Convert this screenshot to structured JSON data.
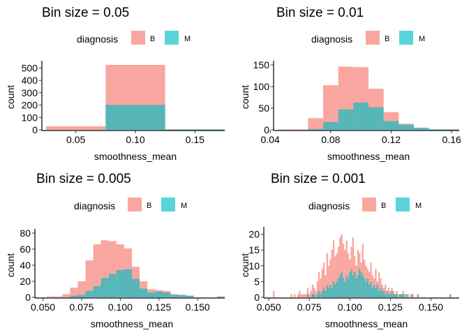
{
  "colors": {
    "B": "#F8766D",
    "M": "#00BFC4",
    "axis": "#000000",
    "text": "#000000"
  },
  "chart_data": [
    {
      "type": "bar",
      "title": "Bin size = 0.05",
      "xlabel": "smoothness_mean",
      "ylabel": "count",
      "legend_title": "diagnosis",
      "legend_position": "top",
      "series_names": [
        "B",
        "M"
      ],
      "bin_width": 0.05,
      "xlim": [
        0.025,
        0.175
      ],
      "ylim": [
        0,
        525
      ],
      "xticks": [
        "0.05",
        "0.10",
        "0.15"
      ],
      "xtick_values": [
        0.05,
        0.1,
        0.15
      ],
      "yticks": [
        "0",
        "100",
        "200",
        "300",
        "400",
        "500"
      ],
      "ytick_values": [
        0,
        100,
        200,
        300,
        400,
        500
      ],
      "bins": [
        {
          "x0": 0.025,
          "x1": 0.075,
          "B": 29,
          "M": 0
        },
        {
          "x0": 0.075,
          "x1": 0.125,
          "B": 525,
          "M": 202
        },
        {
          "x0": 0.125,
          "x1": 0.175,
          "B": 3,
          "M": 3
        }
      ]
    },
    {
      "type": "bar",
      "title": "Bin size = 0.01",
      "xlabel": "smoothness_mean",
      "ylabel": "count",
      "legend_title": "diagnosis",
      "legend_position": "top",
      "series_names": [
        "B",
        "M"
      ],
      "bin_width": 0.01,
      "xlim": [
        0.045,
        0.165
      ],
      "ylim": [
        0,
        150
      ],
      "xticks": [
        "0.04",
        "0.08",
        "0.12",
        "0.16"
      ],
      "xtick_values": [
        0.04,
        0.08,
        0.12,
        0.16
      ],
      "yticks": [
        "0",
        "50",
        "100",
        "150"
      ],
      "ytick_values": [
        0,
        50,
        100,
        150
      ],
      "bins": [
        {
          "x0": 0.045,
          "x1": 0.055,
          "B": 1,
          "M": 0
        },
        {
          "x0": 0.055,
          "x1": 0.065,
          "B": 1,
          "M": 0
        },
        {
          "x0": 0.065,
          "x1": 0.075,
          "B": 27,
          "M": 2
        },
        {
          "x0": 0.075,
          "x1": 0.085,
          "B": 103,
          "M": 18
        },
        {
          "x0": 0.085,
          "x1": 0.095,
          "B": 146,
          "M": 47
        },
        {
          "x0": 0.095,
          "x1": 0.105,
          "B": 145,
          "M": 63
        },
        {
          "x0": 0.105,
          "x1": 0.115,
          "B": 95,
          "M": 52
        },
        {
          "x0": 0.115,
          "x1": 0.125,
          "B": 41,
          "M": 20
        },
        {
          "x0": 0.125,
          "x1": 0.135,
          "B": 14,
          "M": 12
        },
        {
          "x0": 0.135,
          "x1": 0.145,
          "B": 4,
          "M": 5
        },
        {
          "x0": 0.145,
          "x1": 0.155,
          "B": 1,
          "M": 1
        },
        {
          "x0": 0.155,
          "x1": 0.165,
          "B": 1,
          "M": 1
        }
      ]
    },
    {
      "type": "bar",
      "title": "Bin size = 0.005",
      "xlabel": "smoothness_mean",
      "ylabel": "count",
      "legend_title": "diagnosis",
      "legend_position": "top",
      "series_names": [
        "B",
        "M"
      ],
      "bin_width": 0.005,
      "xlim": [
        0.0475,
        0.1675
      ],
      "ylim": [
        0,
        80
      ],
      "xticks": [
        "0.050",
        "0.075",
        "0.100",
        "0.125",
        "0.150"
      ],
      "xtick_values": [
        0.05,
        0.075,
        0.1,
        0.125,
        0.15
      ],
      "yticks": [
        "0",
        "20",
        "40",
        "60",
        "80"
      ],
      "ytick_values": [
        0,
        20,
        40,
        60,
        80
      ],
      "bins": [
        {
          "x0": 0.0525,
          "x1": 0.0575,
          "B": 1,
          "M": 0
        },
        {
          "x0": 0.0575,
          "x1": 0.0625,
          "B": 1,
          "M": 0
        },
        {
          "x0": 0.0625,
          "x1": 0.0675,
          "B": 4,
          "M": 0
        },
        {
          "x0": 0.0675,
          "x1": 0.0725,
          "B": 12,
          "M": 2
        },
        {
          "x0": 0.0725,
          "x1": 0.0775,
          "B": 20,
          "M": 3
        },
        {
          "x0": 0.0775,
          "x1": 0.0825,
          "B": 46,
          "M": 8
        },
        {
          "x0": 0.0825,
          "x1": 0.0875,
          "B": 66,
          "M": 14
        },
        {
          "x0": 0.0875,
          "x1": 0.0925,
          "B": 71,
          "M": 24
        },
        {
          "x0": 0.0925,
          "x1": 0.0975,
          "B": 70,
          "M": 29
        },
        {
          "x0": 0.0975,
          "x1": 0.1025,
          "B": 66,
          "M": 34
        },
        {
          "x0": 0.1025,
          "x1": 0.1075,
          "B": 61,
          "M": 35
        },
        {
          "x0": 0.1075,
          "x1": 0.1125,
          "B": 38,
          "M": 23
        },
        {
          "x0": 0.1125,
          "x1": 0.1175,
          "B": 20,
          "M": 11
        },
        {
          "x0": 0.1175,
          "x1": 0.1225,
          "B": 10,
          "M": 6
        },
        {
          "x0": 0.1225,
          "x1": 0.1275,
          "B": 9,
          "M": 7
        },
        {
          "x0": 0.1275,
          "x1": 0.1325,
          "B": 8,
          "M": 6
        },
        {
          "x0": 0.1325,
          "x1": 0.1375,
          "B": 4,
          "M": 3
        },
        {
          "x0": 0.1375,
          "x1": 0.1425,
          "B": 3,
          "M": 3
        },
        {
          "x0": 0.1425,
          "x1": 0.1475,
          "B": 2,
          "M": 2
        },
        {
          "x0": 0.1625,
          "x1": 0.1675,
          "B": 1,
          "M": 1
        }
      ]
    },
    {
      "type": "bar",
      "title": "Bin size = 0.001",
      "xlabel": "smoothness_mean",
      "ylabel": "count",
      "legend_title": "diagnosis",
      "legend_position": "top",
      "series_names": [
        "B",
        "M"
      ],
      "bin_width": 0.001,
      "xlim": [
        0.0495,
        0.1675
      ],
      "ylim": [
        0,
        21
      ],
      "xticks": [
        "0.050",
        "0.075",
        "0.100",
        "0.125",
        "0.150"
      ],
      "xtick_values": [
        0.05,
        0.075,
        0.1,
        0.125,
        0.15
      ],
      "yticks": [
        "0",
        "5",
        "10",
        "15",
        "20"
      ],
      "ytick_values": [
        0,
        5,
        10,
        15,
        20
      ],
      "bin_start": 0.0525,
      "B_counts": [
        2,
        0,
        0,
        0,
        0,
        0,
        0,
        0,
        0,
        0,
        0,
        1,
        0,
        1,
        0,
        1,
        2,
        1,
        1,
        1,
        1,
        3,
        1,
        2,
        4,
        3,
        2,
        5,
        8,
        6,
        9,
        11,
        7,
        14,
        10,
        12,
        15,
        18,
        13,
        14,
        16,
        19,
        20,
        17,
        15,
        18,
        14,
        12,
        16,
        19,
        13,
        10,
        15,
        14,
        11,
        17,
        12,
        10,
        9,
        8,
        11,
        7,
        6,
        9,
        5,
        8,
        6,
        4,
        3,
        4,
        2,
        3,
        2,
        3,
        2,
        1,
        2,
        1,
        1,
        1,
        2,
        1,
        1,
        1,
        0,
        1,
        1,
        0,
        0,
        1,
        0,
        0,
        0,
        0,
        0,
        0,
        0,
        0,
        0,
        0,
        0,
        0,
        0,
        0,
        0,
        0,
        0,
        0,
        0,
        1
      ],
      "M_counts": [
        0,
        0,
        0,
        0,
        0,
        0,
        0,
        0,
        0,
        0,
        0,
        0,
        0,
        0,
        0,
        0,
        0,
        0,
        0,
        0,
        0,
        1,
        0,
        0,
        1,
        1,
        0,
        1,
        2,
        1,
        2,
        3,
        2,
        4,
        3,
        4,
        3,
        5,
        4,
        5,
        6,
        7,
        8,
        6,
        5,
        7,
        6,
        8,
        9,
        7,
        8,
        6,
        7,
        9,
        8,
        7,
        6,
        5,
        6,
        4,
        5,
        3,
        4,
        3,
        4,
        2,
        3,
        2,
        2,
        1,
        2,
        1,
        1,
        2,
        1,
        1,
        1,
        0,
        1,
        1,
        1,
        0,
        1,
        0,
        0,
        1,
        0,
        0,
        0,
        1,
        0,
        0,
        0,
        0,
        0,
        0,
        0,
        0,
        0,
        0,
        0,
        0,
        0,
        0,
        0,
        0,
        0,
        0,
        0,
        1
      ]
    }
  ]
}
